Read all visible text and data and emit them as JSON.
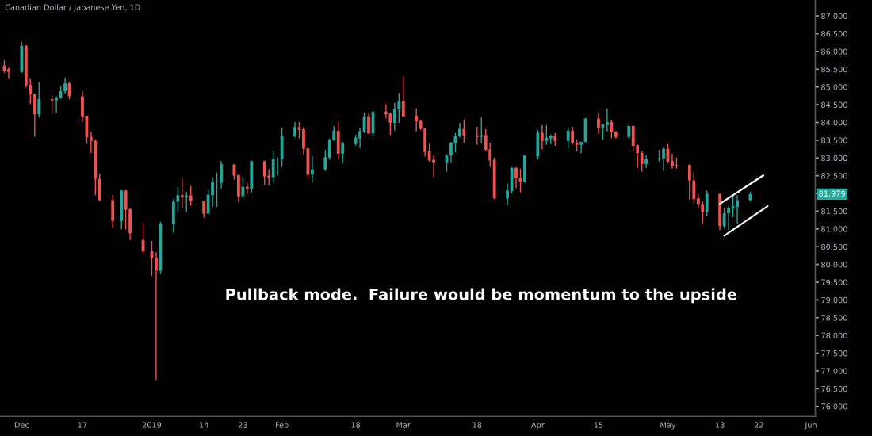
{
  "chart_data": {
    "type": "candlestick",
    "title": "Canadian Dollar / Japanese Yen, 1D",
    "x": [
      "2018-11-29",
      "2018-11-30",
      "2018-12-03",
      "2018-12-04",
      "2018-12-05",
      "2018-12-06",
      "2018-12-07",
      "2018-12-10",
      "2018-12-11",
      "2018-12-12",
      "2018-12-13",
      "2018-12-14",
      "2018-12-17",
      "2018-12-18",
      "2018-12-19",
      "2018-12-20",
      "2018-12-21",
      "2018-12-24",
      "2018-12-26",
      "2018-12-27",
      "2018-12-28",
      "2018-12-31",
      "2019-01-02",
      "2019-01-03",
      "2019-01-04",
      "2019-01-07",
      "2019-01-08",
      "2019-01-09",
      "2019-01-10",
      "2019-01-11",
      "2019-01-14",
      "2019-01-15",
      "2019-01-16",
      "2019-01-17",
      "2019-01-18",
      "2019-01-21",
      "2019-01-22",
      "2019-01-23",
      "2019-01-24",
      "2019-01-25",
      "2019-01-28",
      "2019-01-29",
      "2019-01-30",
      "2019-01-31",
      "2019-02-01",
      "2019-02-04",
      "2019-02-05",
      "2019-02-06",
      "2019-02-07",
      "2019-02-08",
      "2019-02-11",
      "2019-02-12",
      "2019-02-13",
      "2019-02-14",
      "2019-02-15",
      "2019-02-18",
      "2019-02-19",
      "2019-02-20",
      "2019-02-21",
      "2019-02-22",
      "2019-02-25",
      "2019-02-26",
      "2019-02-27",
      "2019-02-28",
      "2019-03-01",
      "2019-03-04",
      "2019-03-05",
      "2019-03-06",
      "2019-03-07",
      "2019-03-08",
      "2019-03-11",
      "2019-03-12",
      "2019-03-13",
      "2019-03-14",
      "2019-03-15",
      "2019-03-18",
      "2019-03-19",
      "2019-03-20",
      "2019-03-21",
      "2019-03-22",
      "2019-03-25",
      "2019-03-26",
      "2019-03-27",
      "2019-03-28",
      "2019-03-29",
      "2019-04-01",
      "2019-04-02",
      "2019-04-03",
      "2019-04-04",
      "2019-04-05",
      "2019-04-08",
      "2019-04-09",
      "2019-04-10",
      "2019-04-11",
      "2019-04-12",
      "2019-04-15",
      "2019-04-16",
      "2019-04-17",
      "2019-04-18",
      "2019-04-19",
      "2019-04-22",
      "2019-04-23",
      "2019-04-24",
      "2019-04-25",
      "2019-04-26",
      "2019-04-29",
      "2019-04-30",
      "2019-05-01",
      "2019-05-02",
      "2019-05-03",
      "2019-05-06",
      "2019-05-07",
      "2019-05-08",
      "2019-05-09",
      "2019-05-10",
      "2019-05-13",
      "2019-05-14",
      "2019-05-15",
      "2019-05-16",
      "2019-05-17",
      "2019-05-20"
    ],
    "ohlc": [
      [
        85.6,
        85.75,
        85.4,
        85.45
      ],
      [
        85.5,
        85.56,
        85.23,
        85.43
      ],
      [
        85.42,
        86.27,
        85.4,
        86.16
      ],
      [
        86.16,
        86.18,
        84.98,
        85.05
      ],
      [
        85.06,
        85.23,
        84.52,
        84.79
      ],
      [
        84.79,
        84.82,
        83.6,
        84.23
      ],
      [
        84.23,
        85.13,
        84.14,
        84.66
      ],
      [
        84.66,
        84.76,
        84.23,
        84.62
      ],
      [
        84.63,
        84.73,
        84.28,
        84.7
      ],
      [
        84.69,
        85.03,
        84.67,
        84.88
      ],
      [
        84.88,
        85.26,
        84.82,
        85.1
      ],
      [
        85.1,
        85.15,
        84.65,
        84.74
      ],
      [
        84.74,
        84.89,
        84.01,
        84.17
      ],
      [
        84.19,
        84.19,
        83.39,
        83.58
      ],
      [
        83.59,
        83.74,
        83.14,
        83.47
      ],
      [
        83.48,
        83.53,
        81.95,
        82.41
      ],
      [
        82.41,
        82.56,
        81.79,
        81.81
      ],
      [
        81.81,
        81.95,
        81.04,
        81.22
      ],
      [
        81.22,
        82.1,
        80.99,
        82.08
      ],
      [
        82.08,
        82.1,
        80.99,
        81.54
      ],
      [
        81.55,
        81.59,
        80.69,
        80.88
      ],
      [
        80.69,
        81.15,
        80.31,
        80.37
      ],
      [
        80.37,
        80.66,
        79.67,
        80.18
      ],
      [
        80.18,
        80.35,
        76.75,
        79.83
      ],
      [
        79.83,
        81.2,
        79.73,
        81.15
      ],
      [
        81.14,
        81.84,
        80.9,
        81.77
      ],
      [
        81.77,
        82.18,
        81.49,
        81.95
      ],
      [
        81.95,
        82.44,
        81.59,
        81.9
      ],
      [
        81.9,
        82.04,
        81.48,
        81.94
      ],
      [
        81.94,
        82.21,
        81.66,
        81.79
      ],
      [
        81.79,
        81.79,
        81.32,
        81.43
      ],
      [
        81.43,
        82.1,
        81.43,
        81.97
      ],
      [
        81.95,
        82.46,
        81.62,
        82.32
      ],
      [
        82.32,
        82.59,
        81.62,
        82.33
      ],
      [
        82.3,
        82.91,
        82.14,
        82.83
      ],
      [
        82.81,
        82.83,
        82.39,
        82.5
      ],
      [
        82.52,
        82.52,
        81.76,
        81.92
      ],
      [
        81.92,
        82.46,
        81.86,
        82.19
      ],
      [
        82.19,
        82.3,
        81.99,
        82.14
      ],
      [
        82.14,
        82.93,
        82.03,
        82.91
      ],
      [
        82.91,
        82.93,
        82.24,
        82.48
      ],
      [
        82.5,
        82.68,
        82.22,
        82.44
      ],
      [
        82.46,
        83.21,
        82.29,
        82.96
      ],
      [
        82.97,
        83.01,
        82.51,
        82.98
      ],
      [
        82.97,
        83.85,
        82.75,
        83.61
      ],
      [
        83.61,
        84.01,
        83.58,
        83.87
      ],
      [
        83.87,
        84.01,
        83.55,
        83.79
      ],
      [
        83.81,
        83.87,
        83.1,
        83.26
      ],
      [
        83.27,
        83.28,
        82.43,
        82.53
      ],
      [
        82.53,
        83.04,
        82.3,
        82.68
      ],
      [
        82.68,
        83.23,
        82.64,
        83.02
      ],
      [
        83.01,
        83.55,
        82.95,
        83.52
      ],
      [
        83.5,
        83.9,
        83.48,
        83.77
      ],
      [
        83.77,
        84.01,
        82.95,
        83.12
      ],
      [
        83.12,
        83.45,
        82.86,
        83.42
      ],
      [
        83.39,
        83.65,
        83.35,
        83.57
      ],
      [
        83.55,
        83.85,
        83.28,
        83.76
      ],
      [
        83.74,
        84.28,
        83.7,
        84.17
      ],
      [
        84.17,
        84.25,
        83.68,
        83.69
      ],
      [
        83.69,
        84.32,
        83.63,
        84.3
      ],
      [
        84.3,
        84.5,
        84.11,
        84.23
      ],
      [
        84.25,
        84.28,
        83.65,
        83.99
      ],
      [
        83.99,
        84.55,
        83.77,
        84.39
      ],
      [
        84.38,
        84.83,
        83.99,
        84.59
      ],
      [
        84.59,
        85.3,
        84.15,
        84.17
      ],
      [
        84.19,
        84.39,
        83.75,
        84.03
      ],
      [
        84.04,
        84.07,
        83.79,
        83.82
      ],
      [
        83.83,
        83.85,
        83.04,
        83.17
      ],
      [
        83.19,
        83.4,
        82.9,
        82.93
      ],
      [
        82.95,
        83.08,
        82.46,
        82.88
      ],
      [
        82.88,
        83.1,
        82.61,
        83.07
      ],
      [
        83.07,
        83.45,
        82.88,
        83.43
      ],
      [
        83.41,
        83.7,
        83.15,
        83.61
      ],
      [
        83.61,
        83.99,
        83.58,
        83.82
      ],
      [
        83.82,
        84.08,
        83.43,
        83.63
      ],
      [
        83.64,
        83.88,
        83.37,
        83.59
      ],
      [
        83.6,
        84.14,
        83.41,
        83.64
      ],
      [
        83.64,
        83.81,
        83.2,
        83.23
      ],
      [
        83.24,
        83.43,
        82.75,
        82.93
      ],
      [
        82.95,
        83.01,
        81.84,
        81.86
      ],
      [
        81.86,
        82.28,
        81.66,
        82.08
      ],
      [
        82.06,
        82.74,
        82.0,
        82.72
      ],
      [
        82.72,
        82.74,
        82.15,
        82.43
      ],
      [
        82.43,
        82.7,
        82.03,
        82.33
      ],
      [
        82.33,
        83.08,
        82.3,
        83.07
      ],
      [
        83.04,
        83.79,
        82.97,
        83.71
      ],
      [
        83.71,
        83.92,
        83.24,
        83.48
      ],
      [
        83.48,
        83.92,
        83.37,
        83.57
      ],
      [
        83.55,
        83.66,
        83.39,
        83.63
      ],
      [
        83.63,
        83.7,
        83.34,
        83.48
      ],
      [
        83.48,
        83.84,
        83.26,
        83.77
      ],
      [
        83.77,
        83.88,
        83.38,
        83.41
      ],
      [
        83.43,
        83.53,
        83.19,
        83.37
      ],
      [
        83.37,
        83.46,
        83.13,
        83.45
      ],
      [
        83.45,
        84.13,
        83.44,
        84.11
      ],
      [
        84.11,
        84.28,
        83.68,
        83.84
      ],
      [
        83.84,
        83.95,
        83.52,
        83.94
      ],
      [
        83.92,
        84.39,
        83.75,
        84.01
      ],
      [
        84.01,
        84.06,
        83.55,
        83.72
      ],
      [
        83.74,
        83.76,
        83.55,
        83.59
      ],
      [
        83.59,
        83.95,
        83.55,
        83.9
      ],
      [
        83.9,
        83.92,
        83.21,
        83.34
      ],
      [
        83.36,
        83.38,
        82.72,
        83.14
      ],
      [
        83.14,
        83.19,
        82.61,
        82.83
      ],
      [
        82.83,
        83.08,
        82.72,
        82.97
      ],
      [
        82.97,
        83.23,
        82.9,
        82.99
      ],
      [
        82.99,
        83.3,
        82.64,
        83.26
      ],
      [
        83.26,
        83.39,
        82.86,
        82.9
      ],
      [
        82.92,
        83.12,
        82.7,
        82.78
      ],
      [
        82.8,
        83.01,
        82.7,
        82.78
      ],
      [
        82.8,
        82.82,
        81.83,
        82.37
      ],
      [
        82.37,
        82.61,
        81.71,
        81.84
      ],
      [
        81.86,
        81.99,
        81.59,
        81.7
      ],
      [
        81.7,
        81.77,
        81.15,
        81.48
      ],
      [
        81.48,
        82.08,
        81.37,
        81.99
      ],
      [
        81.99,
        81.99,
        80.96,
        81.08
      ],
      [
        81.08,
        81.59,
        81.01,
        81.44
      ],
      [
        81.44,
        81.64,
        80.97,
        81.59
      ],
      [
        81.58,
        81.95,
        81.33,
        81.64
      ],
      [
        81.62,
        81.95,
        81.15,
        81.81
      ],
      [
        81.81,
        82.04,
        81.79,
        81.979
      ]
    ],
    "colors": [
      "#ef5350",
      "#ef5350",
      "#26a69a",
      "#ef5350",
      "#ef5350",
      "#ef5350",
      "#26a69a",
      "#ef5350",
      "#26a69a",
      "#26a69a",
      "#26a69a",
      "#ef5350",
      "#ef5350",
      "#ef5350",
      "#ef5350",
      "#ef5350",
      "#ef5350",
      "#ef5350",
      "#26a69a",
      "#ef5350",
      "#ef5350",
      "#ef5350",
      "#ef5350",
      "#ef5350",
      "#26a69a",
      "#26a69a",
      "#26a69a",
      "#ef5350",
      "#26a69a",
      "#ef5350",
      "#ef5350",
      "#26a69a",
      "#26a69a",
      "#26a69a",
      "#26a69a",
      "#ef5350",
      "#ef5350",
      "#26a69a",
      "#ef5350",
      "#26a69a",
      "#ef5350",
      "#ef5350",
      "#26a69a",
      "#26a69a",
      "#26a69a",
      "#26a69a",
      "#ef5350",
      "#ef5350",
      "#ef5350",
      "#26a69a",
      "#26a69a",
      "#26a69a",
      "#26a69a",
      "#ef5350",
      "#26a69a",
      "#26a69a",
      "#26a69a",
      "#26a69a",
      "#ef5350",
      "#26a69a",
      "#ef5350",
      "#ef5350",
      "#26a69a",
      "#26a69a",
      "#ef5350",
      "#ef5350",
      "#ef5350",
      "#ef5350",
      "#ef5350",
      "#ef5350",
      "#26a69a",
      "#26a69a",
      "#26a69a",
      "#26a69a",
      "#ef5350",
      "#ef5350",
      "#26a69a",
      "#ef5350",
      "#ef5350",
      "#ef5350",
      "#26a69a",
      "#26a69a",
      "#ef5350",
      "#ef5350",
      "#26a69a",
      "#26a69a",
      "#ef5350",
      "#26a69a",
      "#26a69a",
      "#ef5350",
      "#26a69a",
      "#ef5350",
      "#ef5350",
      "#26a69a",
      "#26a69a",
      "#ef5350",
      "#26a69a",
      "#26a69a",
      "#ef5350",
      "#ef5350",
      "#26a69a",
      "#ef5350",
      "#ef5350",
      "#ef5350",
      "#26a69a",
      "#26a69a",
      "#26a69a",
      "#ef5350",
      "#ef5350",
      "#ef5350",
      "#ef5350",
      "#ef5350",
      "#ef5350",
      "#ef5350",
      "#26a69a",
      "#ef5350",
      "#26a69a",
      "#26a69a",
      "#26a69a",
      "#26a69a",
      "#26a69a"
    ],
    "series": [
      {
        "type": "line",
        "color": "#ffffff",
        "x": [
          "2019-05-13",
          "2019-05-23"
        ],
        "values": [
          81.71,
          82.51
        ]
      },
      {
        "type": "line",
        "color": "#ffffff",
        "x": [
          "2019-05-14",
          "2019-05-24"
        ],
        "values": [
          80.81,
          81.64
        ]
      }
    ],
    "xlim": [
      "2018-11-28",
      "2019-06-04"
    ],
    "xticks": [
      {
        "value": "2018-12-03",
        "label": "Dec"
      },
      {
        "value": "2018-12-17",
        "label": "17"
      },
      {
        "value": "2019-01-02",
        "label": "2019"
      },
      {
        "value": "2019-01-14",
        "label": "14"
      },
      {
        "value": "2019-01-23",
        "label": "23"
      },
      {
        "value": "2019-02-01",
        "label": "Feb"
      },
      {
        "value": "2019-02-18",
        "label": "18"
      },
      {
        "value": "2019-03-01",
        "label": "Mar"
      },
      {
        "value": "2019-03-18",
        "label": "18"
      },
      {
        "value": "2019-04-01",
        "label": "Apr"
      },
      {
        "value": "2019-04-15",
        "label": "15"
      },
      {
        "value": "2019-05-01",
        "label": "May"
      },
      {
        "value": "2019-05-13",
        "label": "13"
      },
      {
        "value": "2019-05-22",
        "label": "22"
      },
      {
        "value": "2019-06-03",
        "label": "Jun"
      }
    ],
    "ylim": [
      75.72,
      87.45
    ],
    "yticks": [
      {
        "value": 76,
        "label": "76.000"
      },
      {
        "value": 76.5,
        "label": "76.500"
      },
      {
        "value": 77,
        "label": "77.000"
      },
      {
        "value": 77.5,
        "label": "77.500"
      },
      {
        "value": 78,
        "label": "78.000"
      },
      {
        "value": 78.5,
        "label": "78.500"
      },
      {
        "value": 79,
        "label": "79.000"
      },
      {
        "value": 79.5,
        "label": "79.500"
      },
      {
        "value": 80,
        "label": "80.000"
      },
      {
        "value": 80.5,
        "label": "80.500"
      },
      {
        "value": 81,
        "label": "81.000"
      },
      {
        "value": 81.5,
        "label": "81.500"
      },
      {
        "value": 82,
        "label": null
      },
      {
        "value": 82.5,
        "label": "82.500"
      },
      {
        "value": 83,
        "label": "83.000"
      },
      {
        "value": 83.5,
        "label": "83.500"
      },
      {
        "value": 84,
        "label": "84.000"
      },
      {
        "value": 84.5,
        "label": "84.500"
      },
      {
        "value": 85,
        "label": "85.000"
      },
      {
        "value": 85.5,
        "label": "85.500"
      },
      {
        "value": 86,
        "label": "86.000"
      },
      {
        "value": 86.5,
        "label": "86.500"
      },
      {
        "value": 87,
        "label": "87.000"
      }
    ],
    "annotations": [
      "Pullback mode.  Failure would be momentum to the upside",
      {
        "text": "81.979",
        "y": 81.979
      }
    ]
  }
}
